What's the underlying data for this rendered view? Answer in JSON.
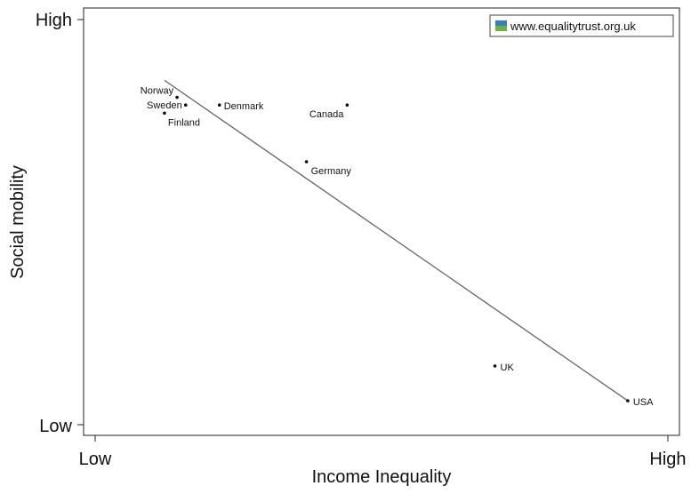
{
  "chart_data": {
    "type": "scatter",
    "xlabel": "Income Inequality",
    "ylabel": "Social mobility",
    "x_ticks": [
      "Low",
      "High"
    ],
    "y_ticks": [
      "Low",
      "High"
    ],
    "xlim": [
      0,
      100
    ],
    "ylim": [
      0,
      100
    ],
    "grid": false,
    "legend": {
      "text": "www.equalitytrust.org.uk",
      "position": "top-right",
      "colors": [
        "#3a7cc1",
        "#6cb33f"
      ]
    },
    "points": [
      {
        "label": "Norway",
        "x": 14.3,
        "y": 80.8
      },
      {
        "label": "Sweden",
        "x": 15.8,
        "y": 78.9
      },
      {
        "label": "Finland",
        "x": 12.1,
        "y": 76.9
      },
      {
        "label": "Denmark",
        "x": 21.7,
        "y": 78.9
      },
      {
        "label": "Canada",
        "x": 44.0,
        "y": 78.9
      },
      {
        "label": "Germany",
        "x": 36.9,
        "y": 64.9
      },
      {
        "label": "UK",
        "x": 69.8,
        "y": 14.5
      },
      {
        "label": "USA",
        "x": 93.0,
        "y": 5.9
      }
    ],
    "trendline": {
      "x": [
        12.1,
        93.0
      ],
      "y": [
        85.0,
        5.9
      ]
    }
  }
}
